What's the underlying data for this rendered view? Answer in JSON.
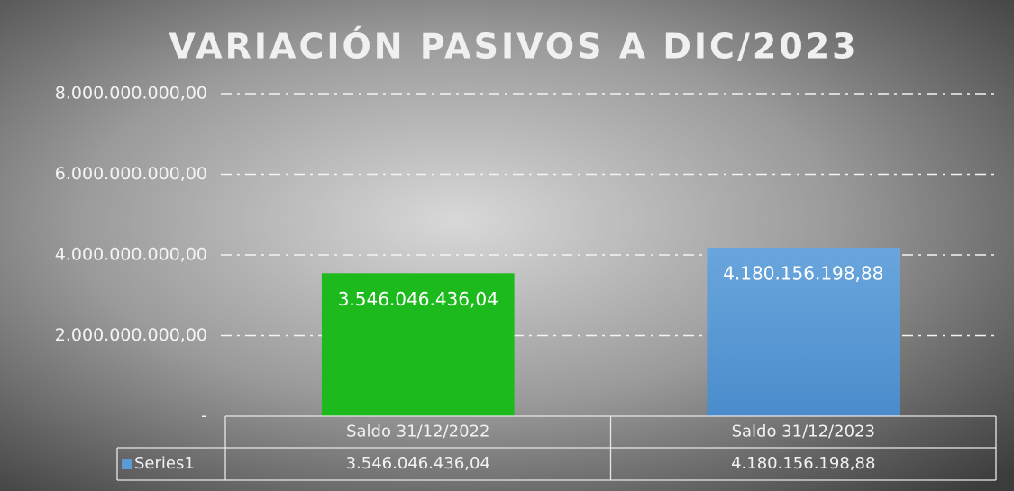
{
  "chart_data": {
    "type": "bar",
    "title": "VARIACIÓN PASIVOS A DIC/2023",
    "categories": [
      "Saldo 31/12/2022",
      "Saldo 31/12/2023"
    ],
    "series": [
      {
        "name": "Series1",
        "color": "#5b9bd5",
        "colors": [
          "#1cba1c",
          "#5b9bd5"
        ],
        "values": [
          3546046436.04,
          4180156198.88
        ],
        "value_labels": [
          "3.546.046.436,04",
          "4.180.156.198,88"
        ]
      }
    ],
    "ylim": [
      0,
      8000000000
    ],
    "yticks": [
      {
        "value": 0,
        "label": "-"
      },
      {
        "value": 2000000000,
        "label": "2.000.000.000,00"
      },
      {
        "value": 4000000000,
        "label": "4.000.000.000,00"
      },
      {
        "value": 6000000000,
        "label": "6.000.000.000,00"
      },
      {
        "value": 8000000000,
        "label": "8.000.000.000,00"
      }
    ],
    "grid": true,
    "data_table": true
  }
}
